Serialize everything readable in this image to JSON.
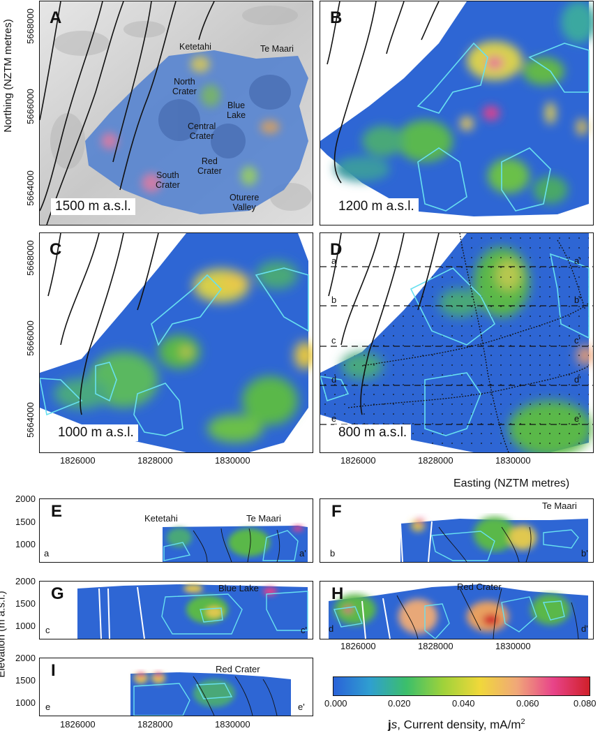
{
  "panels": {
    "A": {
      "letter": "A",
      "altitude": "1500 m a.s.l.",
      "places": {
        "ketetahi": "Ketetahi",
        "te_maari": "Te Maari",
        "north_crater": "North\nCrater",
        "blue_lake": "Blue\nLake",
        "central_crater": "Central\nCrater",
        "red_crater": "Red\nCrater",
        "south_crater": "South\nCrater",
        "oturere_valley": "Oturere\nValley"
      }
    },
    "B": {
      "letter": "B",
      "altitude": "1200 m a.s.l."
    },
    "C": {
      "letter": "C",
      "altitude": "1000 m a.s.l."
    },
    "D": {
      "letter": "D",
      "altitude": "800 m a.s.l.",
      "profiles": [
        "a",
        "b",
        "c",
        "d",
        "e"
      ],
      "profiles_end": [
        "a'",
        "b'",
        "c'",
        "d'",
        "e'"
      ]
    },
    "E": {
      "letter": "E",
      "start": "a",
      "end": "a'",
      "places": [
        "Ketetahi",
        "Te Maari"
      ]
    },
    "F": {
      "letter": "F",
      "start": "b",
      "end": "b'",
      "places": [
        "Te Maari"
      ]
    },
    "G": {
      "letter": "G",
      "start": "c",
      "end": "c'",
      "places": [
        "Blue Lake"
      ]
    },
    "H": {
      "letter": "H",
      "start": "d",
      "end": "d'",
      "places": [
        "Red Crater"
      ]
    },
    "I": {
      "letter": "I",
      "start": "e",
      "end": "e'",
      "places": [
        "Red Crater"
      ]
    }
  },
  "axes": {
    "northing_title": "Northing (NZTM metres)",
    "northing_ticks": [
      "5668000",
      "5666000",
      "5664000"
    ],
    "easting_title": "Easting (NZTM metres)",
    "easting_ticks": [
      "1826000",
      "1828000",
      "1830000"
    ],
    "elevation_title": "Elevation (m a.s.l.)",
    "elevation_ticks": [
      "2000",
      "1500",
      "1000"
    ]
  },
  "colorbar": {
    "ticks": [
      "0.000",
      "0.020",
      "0.040",
      "0.060",
      "0.080"
    ],
    "range": [
      0,
      0.08
    ],
    "label_bold": "j",
    "label_italic": "s",
    "label_rest": ", Current density, mA/m",
    "label_sup": "2",
    "colors": [
      "#2a62d8",
      "#2f9fd0",
      "#3cbf6a",
      "#9fd23a",
      "#f0d83a",
      "#f0a878",
      "#e8448a",
      "#d0202a"
    ]
  }
}
